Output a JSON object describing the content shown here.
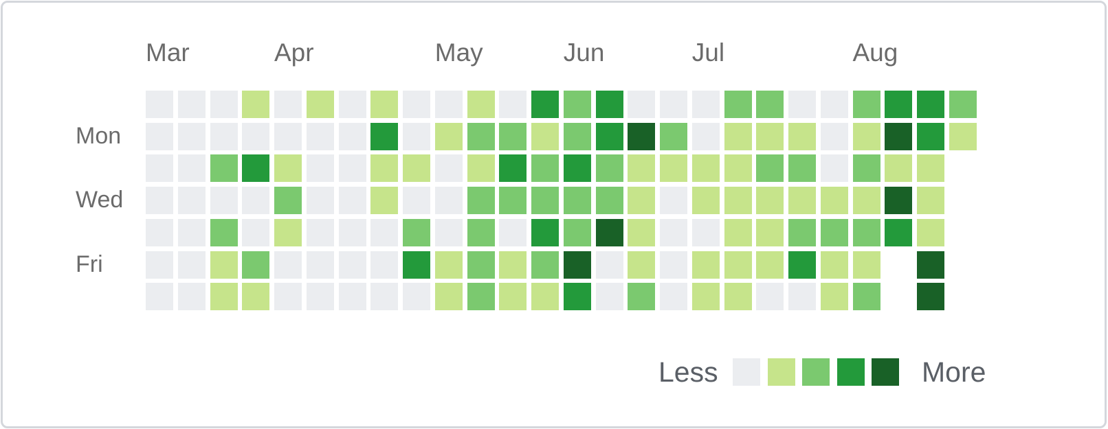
{
  "chart_data": {
    "type": "heatmap",
    "months": [
      {
        "label": "Mar",
        "week": 0
      },
      {
        "label": "Apr",
        "week": 4
      },
      {
        "label": "May",
        "week": 9
      },
      {
        "label": "Jun",
        "week": 13
      },
      {
        "label": "Jul",
        "week": 17
      },
      {
        "label": "Aug",
        "week": 22
      }
    ],
    "weekday_labels": [
      {
        "label": "Mon",
        "row": 1
      },
      {
        "label": "Wed",
        "row": 3
      },
      {
        "label": "Fri",
        "row": 5
      }
    ],
    "levels": [
      [
        0,
        0,
        0,
        1,
        0,
        1,
        0,
        1,
        0,
        0,
        1,
        0,
        3,
        2,
        3,
        0,
        0,
        0,
        2,
        2,
        0,
        0,
        2,
        3,
        3,
        2
      ],
      [
        0,
        0,
        0,
        0,
        0,
        0,
        0,
        3,
        0,
        1,
        2,
        2,
        1,
        2,
        3,
        4,
        2,
        0,
        1,
        1,
        1,
        0,
        1,
        4,
        3,
        1
      ],
      [
        0,
        0,
        2,
        3,
        1,
        0,
        0,
        1,
        1,
        0,
        1,
        3,
        2,
        3,
        2,
        1,
        1,
        1,
        1,
        2,
        2,
        0,
        2,
        1,
        1,
        null
      ],
      [
        0,
        0,
        0,
        0,
        2,
        0,
        0,
        1,
        0,
        0,
        2,
        2,
        2,
        2,
        2,
        1,
        0,
        1,
        1,
        1,
        1,
        1,
        1,
        4,
        1,
        null
      ],
      [
        0,
        0,
        2,
        0,
        1,
        0,
        0,
        0,
        2,
        0,
        2,
        0,
        3,
        2,
        4,
        1,
        0,
        0,
        1,
        1,
        2,
        2,
        2,
        3,
        1,
        null
      ],
      [
        0,
        0,
        1,
        2,
        0,
        0,
        0,
        0,
        3,
        1,
        2,
        1,
        2,
        4,
        0,
        1,
        0,
        1,
        1,
        1,
        3,
        1,
        1,
        null,
        4,
        null
      ],
      [
        0,
        0,
        1,
        1,
        0,
        0,
        0,
        0,
        0,
        1,
        2,
        1,
        1,
        3,
        0,
        2,
        0,
        1,
        1,
        0,
        0,
        1,
        2,
        null,
        4,
        null
      ]
    ],
    "legend": {
      "less_label": "Less",
      "more_label": "More"
    },
    "colors": [
      "#ebedf0",
      "#c6e48b",
      "#7bc96f",
      "#239a3b",
      "#196127"
    ]
  }
}
